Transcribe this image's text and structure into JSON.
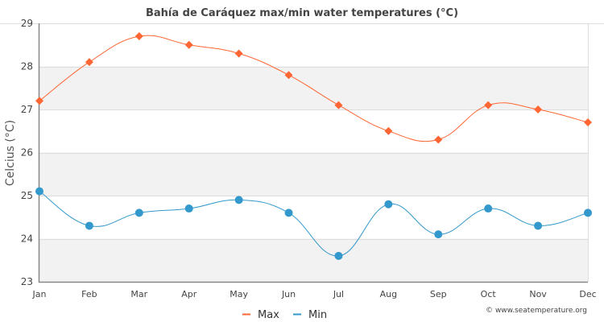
{
  "chart_data": {
    "type": "line",
    "title": "Bahía de Caráquez max/min water temperatures (°C)",
    "xlabel": "",
    "ylabel": "Celcius (°C)",
    "ylim": [
      23,
      29
    ],
    "yticks": [
      "23",
      "24",
      "25",
      "26",
      "27",
      "28",
      "29"
    ],
    "categories": [
      "Jan",
      "Feb",
      "Mar",
      "Apr",
      "May",
      "Jun",
      "Jul",
      "Aug",
      "Sep",
      "Oct",
      "Nov",
      "Dec"
    ],
    "grid": true,
    "legend_position": "bottom-center",
    "series": [
      {
        "name": "Max",
        "color": "#ff6633",
        "marker": "diamond",
        "values": [
          27.2,
          28.1,
          28.7,
          28.5,
          28.3,
          27.8,
          27.1,
          26.5,
          26.3,
          27.1,
          27.0,
          26.7
        ]
      },
      {
        "name": "Min",
        "color": "#3399cc",
        "marker": "circle",
        "values": [
          25.1,
          24.3,
          24.6,
          24.7,
          24.9,
          24.6,
          23.6,
          24.8,
          24.1,
          24.7,
          24.3,
          24.6
        ]
      }
    ],
    "credit": "© www.seatemperature.org"
  }
}
